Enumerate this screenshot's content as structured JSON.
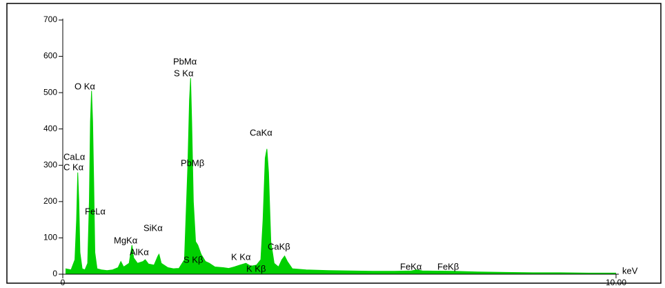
{
  "chart_data": {
    "type": "area",
    "color": "#00d000",
    "xlabel": "keV",
    "xlim": [
      0,
      10
    ],
    "ylim": [
      0,
      700
    ],
    "xticks": [
      0,
      {
        "value": 10,
        "label": "10.00"
      }
    ],
    "yticks": [
      0,
      100,
      200,
      300,
      400,
      500,
      600,
      700
    ],
    "annotations": [
      "PbMα",
      "S Kα",
      "O Kα",
      "CaLα",
      "C Kα",
      "FeLα",
      "MgKα",
      "AlKα",
      "SiKα",
      "PbMβ",
      "S Kβ",
      "K Kα",
      "K Kβ",
      "CaKα",
      "CaKβ",
      "FeKα",
      "FeKβ"
    ],
    "x": [
      0.05,
      0.15,
      0.22,
      0.25,
      0.27,
      0.29,
      0.31,
      0.35,
      0.4,
      0.45,
      0.48,
      0.5,
      0.52,
      0.54,
      0.56,
      0.58,
      0.62,
      0.7,
      0.8,
      0.9,
      1.0,
      1.05,
      1.1,
      1.2,
      1.25,
      1.28,
      1.35,
      1.45,
      1.49,
      1.55,
      1.65,
      1.72,
      1.74,
      1.78,
      1.9,
      2.0,
      2.1,
      2.2,
      2.26,
      2.29,
      2.31,
      2.33,
      2.36,
      2.4,
      2.44,
      2.5,
      2.58,
      2.65,
      2.75,
      2.9,
      3.0,
      3.1,
      3.2,
      3.31,
      3.4,
      3.5,
      3.58,
      3.62,
      3.66,
      3.69,
      3.72,
      3.76,
      3.82,
      3.9,
      3.96,
      4.01,
      4.06,
      4.15,
      4.4,
      4.8,
      5.2,
      5.6,
      6.0,
      6.3,
      6.4,
      6.5,
      7.06,
      7.5,
      8.0,
      8.5,
      9.0,
      9.5,
      10.0
    ],
    "values": [
      15,
      12,
      40,
      150,
      280,
      200,
      60,
      15,
      12,
      30,
      200,
      420,
      505,
      420,
      250,
      60,
      15,
      12,
      10,
      12,
      18,
      35,
      20,
      30,
      80,
      45,
      30,
      35,
      40,
      28,
      25,
      50,
      55,
      30,
      18,
      15,
      16,
      40,
      300,
      480,
      540,
      420,
      200,
      90,
      80,
      55,
      35,
      30,
      20,
      18,
      16,
      20,
      25,
      30,
      22,
      25,
      40,
      150,
      320,
      345,
      280,
      90,
      30,
      20,
      40,
      50,
      35,
      15,
      12,
      10,
      9,
      8,
      8,
      9,
      12,
      9,
      8,
      6,
      5,
      4,
      4,
      3,
      3
    ]
  }
}
